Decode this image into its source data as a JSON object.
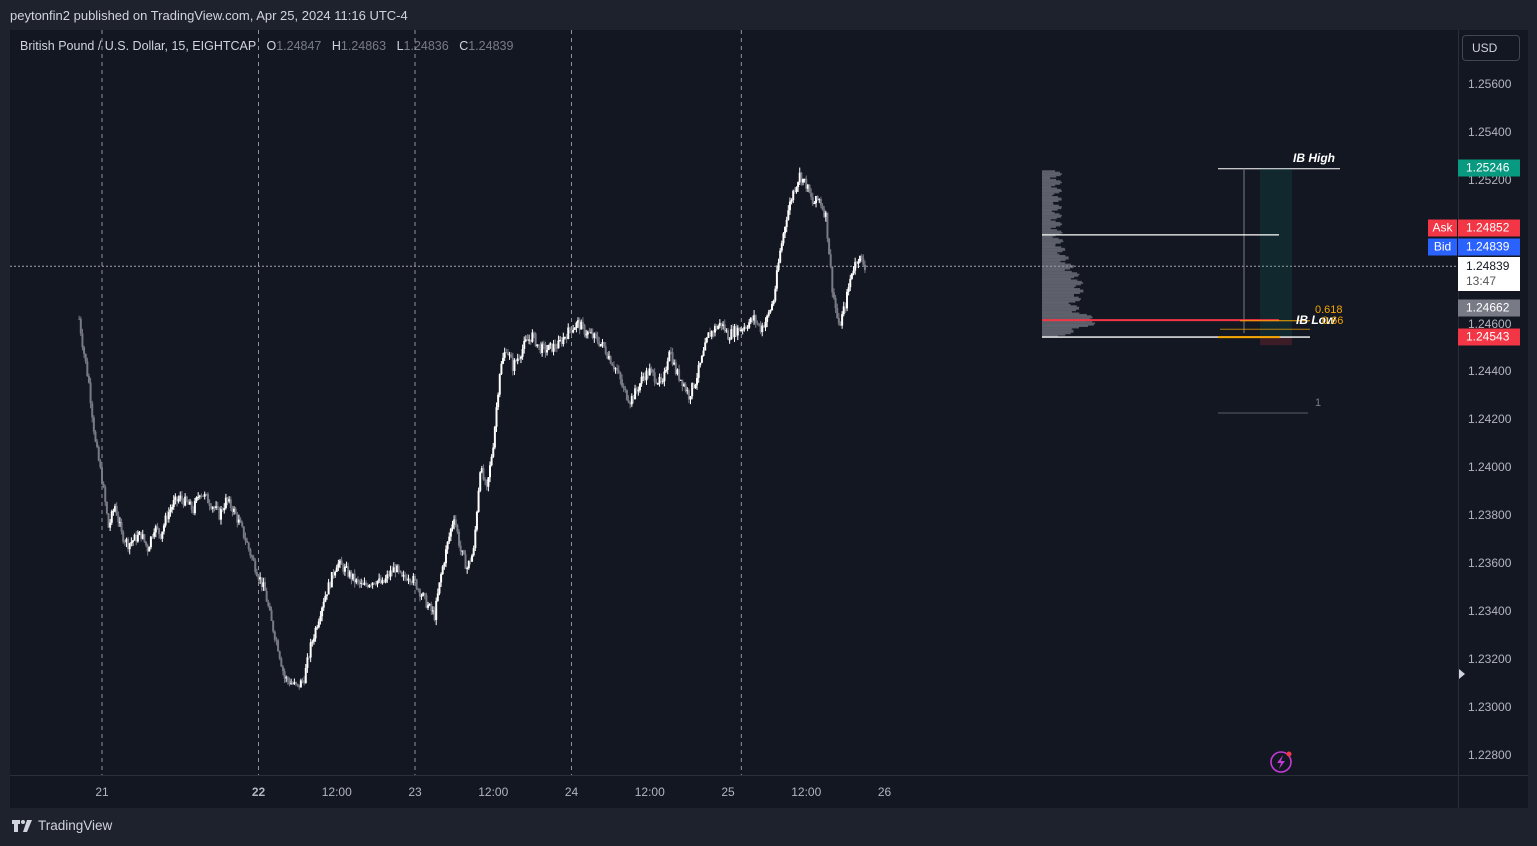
{
  "header": {
    "text": "peytonfin2 published on TradingView.com, Apr 25, 2024 11:16 UTC-4"
  },
  "legend": {
    "symbol": "British Pound / U.S. Dollar, 15, EIGHTCAP",
    "o_label": "O",
    "o": "1.24847",
    "h_label": "H",
    "h": "1.24863",
    "l_label": "L",
    "l": "1.24836",
    "c_label": "C",
    "c": "1.24839"
  },
  "currency_button": "USD",
  "price_tags": {
    "ib_high": "1.25246",
    "ask_label": "Ask",
    "ask": "1.24852",
    "bid_label": "Bid",
    "bid": "1.24839",
    "current": "1.24839",
    "countdown": "13:47",
    "gray": "1.24662",
    "red": "1.24543"
  },
  "annotations": {
    "ib_high": "IB High",
    "ib_low": "IB Low",
    "fib": "0.618",
    "fib2": "0.66",
    "one": "1"
  },
  "footer": {
    "brand": "TradingView"
  },
  "colors": {
    "background": "#131722",
    "candle": "#ffffff",
    "ib_high_tag": "#089981",
    "ask": "#f23645",
    "bid": "#2962ff",
    "fib": "#f7a600",
    "red_line": "#f23645"
  },
  "chart_data": {
    "type": "candlestick",
    "title": "British Pound / U.S. Dollar, 15, EIGHTCAP",
    "y_ticks": [
      "1.25600",
      "1.25400",
      "1.25200",
      "1.25000",
      "1.24800",
      "1.24600",
      "1.24400",
      "1.24200",
      "1.24000",
      "1.23800",
      "1.23600",
      "1.23400",
      "1.23200",
      "1.23000",
      "1.22800"
    ],
    "y_tick_values": [
      1.256,
      1.254,
      1.252,
      1.25,
      1.248,
      1.246,
      1.244,
      1.242,
      1.24,
      1.238,
      1.236,
      1.234,
      1.232,
      1.23,
      1.228
    ],
    "x_ticks": [
      "21",
      "22",
      "12:00",
      "23",
      "12:00",
      "24",
      "12:00",
      "25",
      "12:00",
      "26"
    ],
    "x_tick_hours": [
      0,
      24,
      36,
      48,
      60,
      72,
      84,
      96,
      108,
      120
    ],
    "x_axis_start_hour": -3.5,
    "x_axis_end_hour": 120,
    "session_breaks_hours": [
      0,
      24,
      48,
      72
    ],
    "levels": {
      "ib_high": 1.25246,
      "ib_low": 1.2456,
      "ask": 1.24852,
      "bid": 1.24839,
      "current": 1.24839,
      "gray": 1.24662,
      "red": 1.24543,
      "fib_618": 1.2462,
      "fib_66": 1.2458,
      "white_mid": 1.2497
    },
    "close_path": [
      [
        -3.5,
        1.2462
      ],
      [
        -3,
        1.2452
      ],
      [
        -2,
        1.2435
      ],
      [
        -1,
        1.241
      ],
      [
        0,
        1.2395
      ],
      [
        1,
        1.2375
      ],
      [
        2,
        1.2384
      ],
      [
        3,
        1.2372
      ],
      [
        4,
        1.2368
      ],
      [
        5,
        1.237
      ],
      [
        6,
        1.2372
      ],
      [
        7,
        1.2366
      ],
      [
        8,
        1.2375
      ],
      [
        9,
        1.2372
      ],
      [
        10,
        1.238
      ],
      [
        11,
        1.2385
      ],
      [
        12,
        1.2387
      ],
      [
        13,
        1.2385
      ],
      [
        14,
        1.2382
      ],
      [
        15,
        1.239
      ],
      [
        16,
        1.2387
      ],
      [
        17,
        1.2384
      ],
      [
        18,
        1.238
      ],
      [
        19,
        1.2386
      ],
      [
        20,
        1.2383
      ],
      [
        21,
        1.2377
      ],
      [
        22,
        1.237
      ],
      [
        23,
        1.2362
      ],
      [
        24,
        1.2355
      ],
      [
        25,
        1.2348
      ],
      [
        26,
        1.2335
      ],
      [
        27,
        1.2325
      ],
      [
        28,
        1.2312
      ],
      [
        29,
        1.231
      ],
      [
        30,
        1.2308
      ],
      [
        31,
        1.2312
      ],
      [
        32,
        1.2325
      ],
      [
        33,
        1.2335
      ],
      [
        34,
        1.2345
      ],
      [
        35,
        1.2352
      ],
      [
        36,
        1.236
      ],
      [
        37,
        1.2358
      ],
      [
        38,
        1.2355
      ],
      [
        39,
        1.2352
      ],
      [
        40,
        1.235
      ],
      [
        41,
        1.2352
      ],
      [
        42,
        1.2353
      ],
      [
        43,
        1.2351
      ],
      [
        44,
        1.2355
      ],
      [
        45,
        1.2358
      ],
      [
        46,
        1.2353
      ],
      [
        47,
        1.2355
      ],
      [
        48,
        1.2352
      ],
      [
        49,
        1.2347
      ],
      [
        50,
        1.2342
      ],
      [
        51,
        1.2338
      ],
      [
        52,
        1.2355
      ],
      [
        53,
        1.2368
      ],
      [
        54,
        1.238
      ],
      [
        55,
        1.2365
      ],
      [
        56,
        1.2358
      ],
      [
        57,
        1.2365
      ],
      [
        58,
        1.24
      ],
      [
        59,
        1.239
      ],
      [
        60,
        1.241
      ],
      [
        61,
        1.244
      ],
      [
        62,
        1.245
      ],
      [
        63,
        1.2442
      ],
      [
        64,
        1.2447
      ],
      [
        65,
        1.2452
      ],
      [
        66,
        1.2455
      ],
      [
        67,
        1.245
      ],
      [
        68,
        1.2449
      ],
      [
        69,
        1.245
      ],
      [
        70,
        1.2451
      ],
      [
        71,
        1.2455
      ],
      [
        72,
        1.2458
      ],
      [
        73,
        1.246
      ],
      [
        74,
        1.2457
      ],
      [
        75,
        1.2455
      ],
      [
        76,
        1.2453
      ],
      [
        77,
        1.245
      ],
      [
        78,
        1.2445
      ],
      [
        79,
        1.244
      ],
      [
        80,
        1.2432
      ],
      [
        81,
        1.2428
      ],
      [
        82,
        1.2432
      ],
      [
        83,
        1.2438
      ],
      [
        84,
        1.244
      ],
      [
        85,
        1.2437
      ],
      [
        86,
        1.2434
      ],
      [
        87,
        1.245
      ],
      [
        88,
        1.244
      ],
      [
        89,
        1.2436
      ],
      [
        90,
        1.243
      ],
      [
        91,
        1.2436
      ],
      [
        92,
        1.2445
      ],
      [
        93,
        1.2455
      ],
      [
        94,
        1.2458
      ],
      [
        95,
        1.246
      ],
      [
        96,
        1.2455
      ],
      [
        97,
        1.2457
      ],
      [
        98,
        1.2458
      ],
      [
        99,
        1.246
      ],
      [
        100,
        1.2462
      ],
      [
        101,
        1.2458
      ],
      [
        102,
        1.2462
      ],
      [
        103,
        1.247
      ],
      [
        104,
        1.249
      ],
      [
        105,
        1.2505
      ],
      [
        106,
        1.2515
      ],
      [
        107,
        1.2522
      ],
      [
        108,
        1.2518
      ],
      [
        109,
        1.251
      ],
      [
        110,
        1.2512
      ],
      [
        111,
        1.2505
      ],
      [
        112,
        1.2475
      ],
      [
        113,
        1.2458
      ],
      [
        114,
        1.2468
      ],
      [
        115,
        1.2482
      ],
      [
        116,
        1.2488
      ],
      [
        117,
        1.2484
      ]
    ]
  }
}
